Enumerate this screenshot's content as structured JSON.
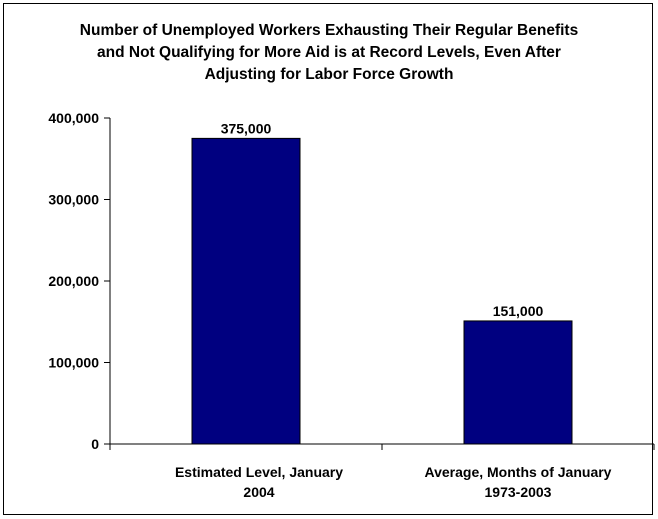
{
  "chart_data": {
    "type": "bar",
    "title_lines": [
      "Number of Unemployed Workers Exhausting Their Regular Benefits",
      "and Not Qualifying for More Aid is at Record Levels, Even After",
      "Adjusting for Labor Force Growth"
    ],
    "categories": [
      [
        "Estimated Level, January",
        "2004"
      ],
      [
        "Average, Months of January",
        "1973-2003"
      ]
    ],
    "values": [
      375000,
      151000
    ],
    "data_labels": [
      "375,000",
      "151,000"
    ],
    "ylim": [
      0,
      400000
    ],
    "yticks": [
      0,
      100000,
      200000,
      300000,
      400000
    ],
    "ytick_labels": [
      "0",
      "100,000",
      "200,000",
      "300,000",
      "400,000"
    ],
    "bar_color": "#000080",
    "grid": false,
    "legend": "none"
  }
}
